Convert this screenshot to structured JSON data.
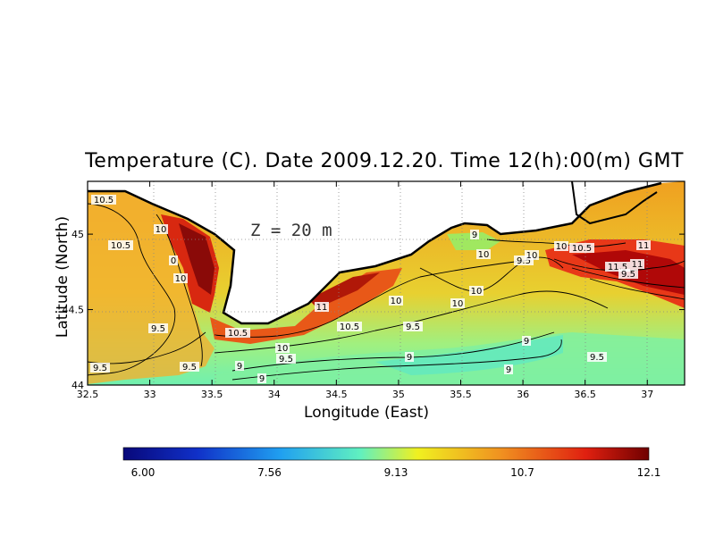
{
  "chart_data": {
    "type": "heatmap",
    "title": "Temperature (C). Date 2009.12.20. Time 12(h):00(m) GMT",
    "xlabel": "Longitude (East)",
    "ylabel": "Latitude (North)",
    "annotation": "Z = 20 m",
    "xlim": [
      32.5,
      37.3
    ],
    "ylim": [
      44.0,
      45.35
    ],
    "x_ticks": [
      "32.5",
      "33",
      "33.5",
      "34",
      "34.5",
      "35",
      "35.5",
      "36",
      "36.5",
      "37"
    ],
    "y_ticks": [
      "44",
      "44.5",
      "45"
    ],
    "grid": true,
    "colorbar": {
      "min": 6.0,
      "max": 12.1,
      "tick_labels": [
        "6.00",
        "7.56",
        "9.13",
        "10.7",
        "12.1"
      ],
      "colors": [
        "#08087a",
        "#1030c8",
        "#20a0f0",
        "#60f0c0",
        "#f0f020",
        "#f09020",
        "#e02010",
        "#700000"
      ]
    },
    "contour_labels": [
      "10.5",
      "10",
      "10.5",
      "0",
      "10",
      "9.5",
      "9.5",
      "10.5",
      "10",
      "9.5",
      "9",
      "9",
      "11",
      "10.5",
      "10",
      "9.5",
      "10",
      "9",
      "9.5",
      "10",
      "10",
      "9.5",
      "9",
      "9",
      "10",
      "10",
      "10.5",
      "11",
      "11.5",
      "11",
      "9.5",
      "9.5",
      "9"
    ]
  }
}
